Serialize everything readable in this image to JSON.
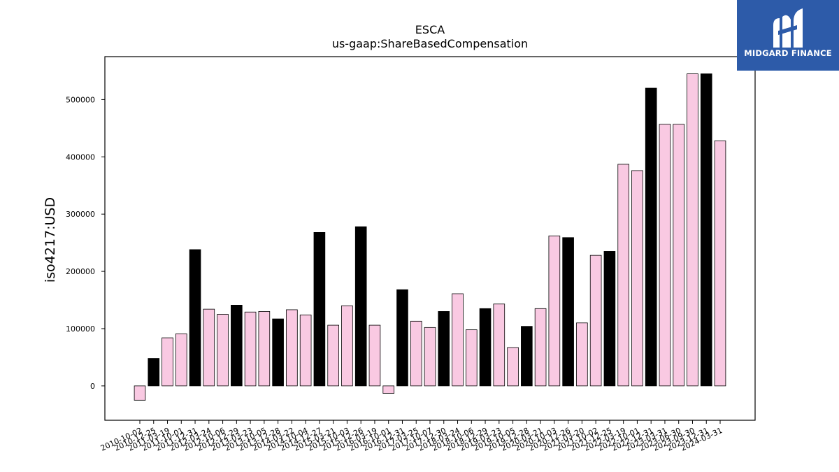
{
  "logo": {
    "text": "MIDGARD FINANCE",
    "icon": "midgard-m-icon",
    "background": "#2d5ba9"
  },
  "chart_data": {
    "type": "bar",
    "title": "ESCA",
    "subtitle": "us-gaap:ShareBasedCompensation",
    "xlabel": "",
    "ylabel": "iso4217:USD",
    "ylim": [
      -60000,
      575000
    ],
    "yticks": [
      0,
      100000,
      200000,
      300000,
      400000,
      500000
    ],
    "grid": false,
    "colors": {
      "quarterly": "#f9c9e2",
      "annual": "#000000",
      "edge": "#000000"
    },
    "categories": [
      "2010-10-02",
      "2010-12-25",
      "2011-03-19",
      "2011-10-01",
      "2011-12-31",
      "2012-03-24",
      "2012-10-06",
      "2012-12-29",
      "2013-03-23",
      "2013-10-05",
      "2013-12-28",
      "2014-03-22",
      "2014-10-04",
      "2014-12-27",
      "2015-03-21",
      "2015-10-03",
      "2015-12-26",
      "2016-03-19",
      "2016-10-01",
      "2016-12-31",
      "2017-03-25",
      "2017-10-07",
      "2017-12-30",
      "2018-03-24",
      "2018-10-06",
      "2018-12-29",
      "2019-03-23",
      "2019-10-05",
      "2019-12-28",
      "2020-03-21",
      "2020-10-03",
      "2020-12-26",
      "2021-03-20",
      "2021-10-02",
      "2021-12-25",
      "2022-03-19",
      "2022-10-01",
      "2022-12-31",
      "2023-03-31",
      "2023-06-30",
      "2023-09-30",
      "2023-12-31",
      "2024-03-31"
    ],
    "values": [
      -25000,
      48000,
      84000,
      91000,
      238000,
      134000,
      125000,
      141000,
      129000,
      130000,
      117000,
      133000,
      124000,
      268000,
      106000,
      140000,
      278000,
      106000,
      -13000,
      168000,
      113000,
      102000,
      130000,
      161000,
      98000,
      135000,
      143000,
      67000,
      104000,
      135000,
      262000,
      259000,
      110000,
      228000,
      235000,
      387000,
      376000,
      520000,
      457000,
      457000,
      545000,
      545000,
      428000
    ],
    "series_type": [
      "quarterly",
      "annual",
      "quarterly",
      "quarterly",
      "annual",
      "quarterly",
      "quarterly",
      "annual",
      "quarterly",
      "quarterly",
      "annual",
      "quarterly",
      "quarterly",
      "annual",
      "quarterly",
      "quarterly",
      "annual",
      "quarterly",
      "quarterly",
      "annual",
      "quarterly",
      "quarterly",
      "annual",
      "quarterly",
      "quarterly",
      "annual",
      "quarterly",
      "quarterly",
      "annual",
      "quarterly",
      "quarterly",
      "annual",
      "quarterly",
      "quarterly",
      "annual",
      "quarterly",
      "quarterly",
      "annual",
      "quarterly",
      "quarterly",
      "quarterly",
      "annual",
      "quarterly"
    ]
  }
}
